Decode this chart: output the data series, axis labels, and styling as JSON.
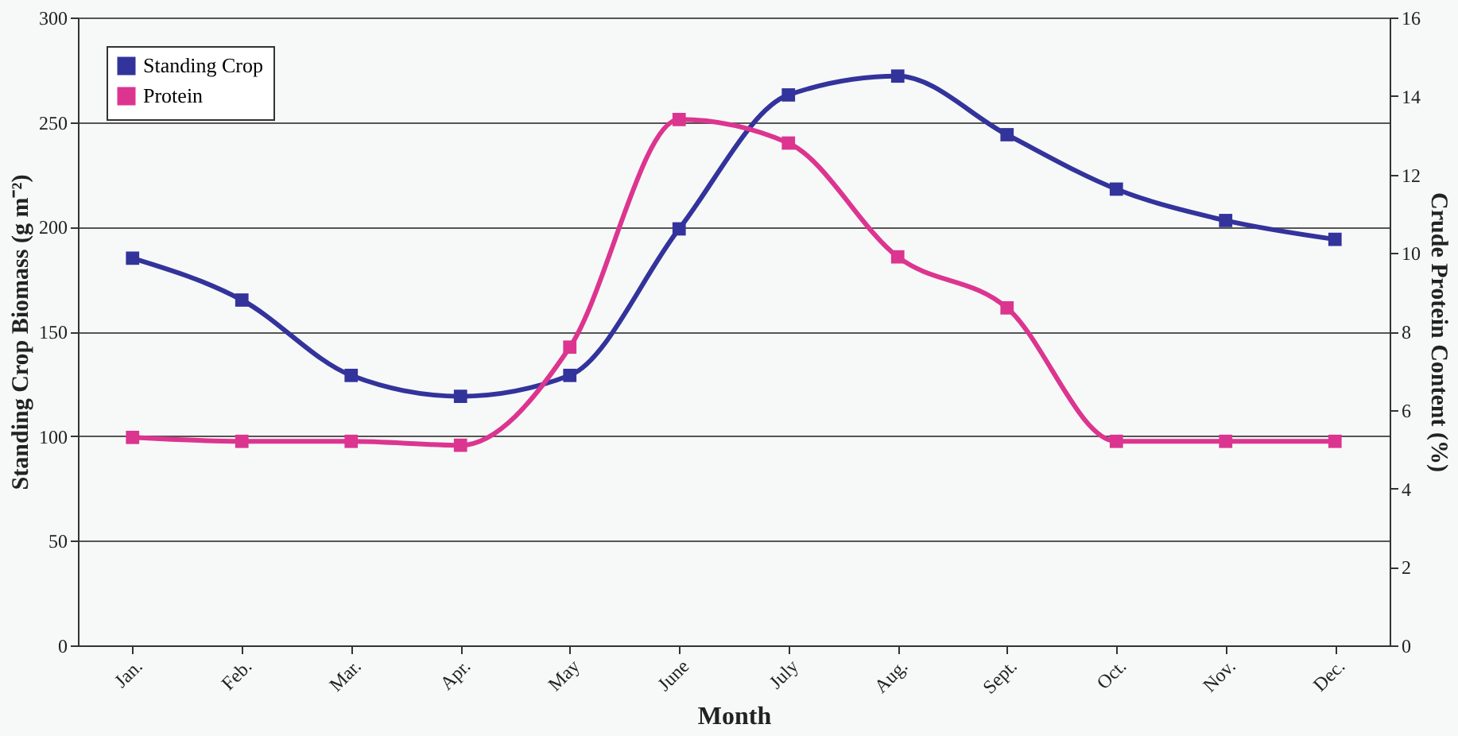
{
  "chart_data": {
    "type": "line",
    "xlabel": "Month",
    "ylabel": "Standing Crop Biomass (g m⁻²)",
    "y2label": "Crude Protein Content (%)",
    "categories": [
      "Jan.",
      "Feb.",
      "Mar.",
      "Apr.",
      "May",
      "June",
      "July",
      "Aug.",
      "Sept.",
      "Oct.",
      "Nov.",
      "Dec."
    ],
    "series": [
      {
        "name": "Standing Crop",
        "color": "#33339c",
        "values": [
          185,
          165,
          129,
          119,
          129,
          199,
          263,
          272,
          244,
          218,
          203,
          194
        ]
      },
      {
        "name": "Protein",
        "color": "#dc3590",
        "axis": "y2",
        "values": [
          5.3,
          5.2,
          5.2,
          5.1,
          7.6,
          13.4,
          12.8,
          9.9,
          8.6,
          5.2,
          5.2,
          5.2
        ]
      }
    ],
    "ylim": [
      0,
      300
    ],
    "yticks": [
      0,
      50,
      100,
      150,
      200,
      250,
      300
    ],
    "y2lim": [
      0,
      16
    ],
    "y2ticks": [
      0,
      2,
      4,
      6,
      8,
      10,
      12,
      14,
      16
    ],
    "grid": "y",
    "legend": "top left",
    "marker": "square",
    "line_style": "solid"
  }
}
